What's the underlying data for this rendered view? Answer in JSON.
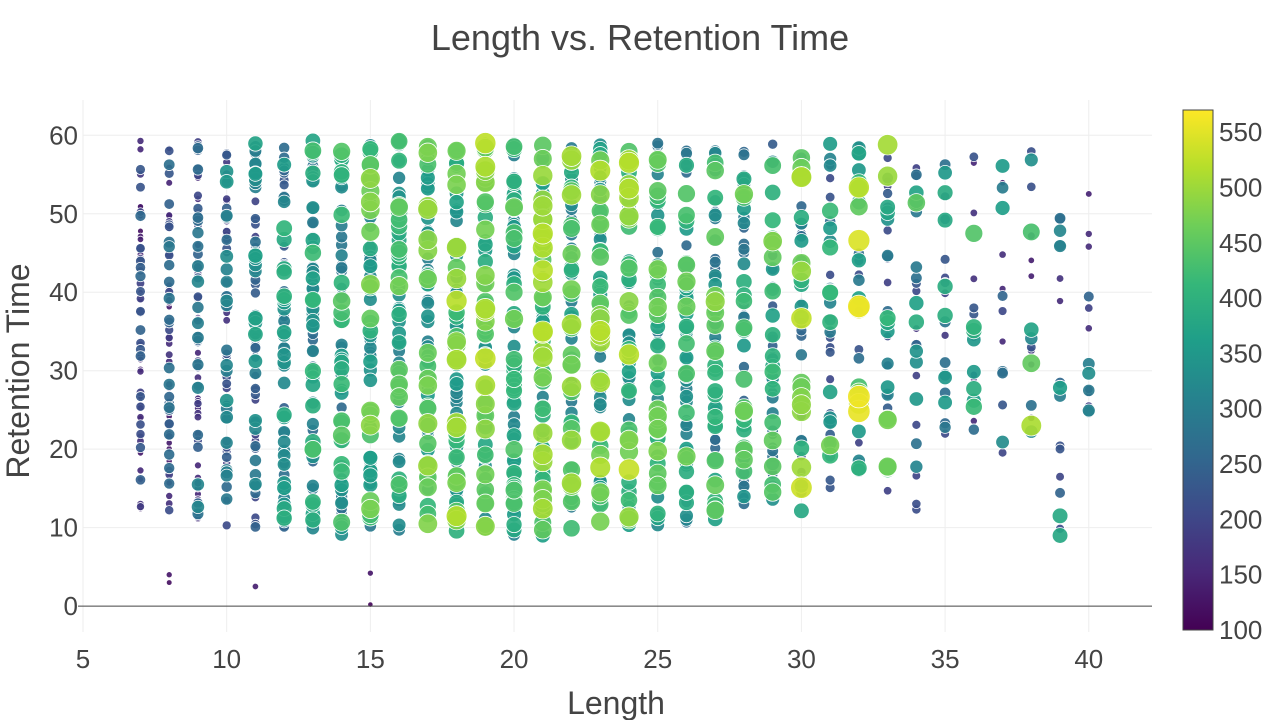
{
  "chart_data": {
    "type": "scatter",
    "title": "Length vs. Retention Time",
    "xlabel": "Length",
    "ylabel": "Retention Time",
    "xlim": [
      5,
      42.2
    ],
    "ylim": [
      -3.3,
      64.5
    ],
    "x_ticks": [
      5,
      10,
      15,
      20,
      25,
      30,
      35,
      40
    ],
    "y_ticks": [
      0,
      10,
      20,
      30,
      40,
      50,
      60
    ],
    "grid": true,
    "legend": "none",
    "colorscale": "Viridis",
    "marker_size_and_color_by": "peptide mass-like value (color bar)",
    "colorbar": {
      "range": [
        100,
        570
      ],
      "ticks": [
        100,
        150,
        200,
        250,
        300,
        350,
        400,
        450,
        500,
        550
      ]
    },
    "colors": {
      "viridis": [
        "#440154",
        "#482878",
        "#3e4989",
        "#31688e",
        "#26828e",
        "#1f9e89",
        "#35b779",
        "#6ece58",
        "#b5de2b",
        "#fde725"
      ]
    },
    "columns": [
      {
        "x": 7,
        "ymin": 12,
        "ymax": 59.5,
        "cmin": 110,
        "cmax": 260,
        "n": 70
      },
      {
        "x": 8,
        "ymin": 11,
        "ymax": 59.5,
        "cmin": 130,
        "cmax": 290,
        "n": 70
      },
      {
        "x": 9,
        "ymin": 10.5,
        "ymax": 59.5,
        "cmin": 150,
        "cmax": 320,
        "n": 72
      },
      {
        "x": 10,
        "ymin": 10,
        "ymax": 59.5,
        "cmin": 170,
        "cmax": 350,
        "n": 74
      },
      {
        "x": 11,
        "ymin": 10,
        "ymax": 59.5,
        "cmin": 190,
        "cmax": 380,
        "n": 74
      },
      {
        "x": 12,
        "ymin": 9.5,
        "ymax": 59.5,
        "cmin": 220,
        "cmax": 420,
        "n": 76
      },
      {
        "x": 13,
        "ymin": 9.5,
        "ymax": 59.5,
        "cmin": 240,
        "cmax": 440,
        "n": 76
      },
      {
        "x": 14,
        "ymin": 9,
        "ymax": 59.5,
        "cmin": 260,
        "cmax": 460,
        "n": 76
      },
      {
        "x": 15,
        "ymin": 9.5,
        "ymax": 59.5,
        "cmin": 280,
        "cmax": 490,
        "n": 76
      },
      {
        "x": 16,
        "ymin": 9.5,
        "ymax": 59.5,
        "cmin": 300,
        "cmax": 480,
        "n": 76
      },
      {
        "x": 17,
        "ymin": 9.5,
        "ymax": 59.5,
        "cmin": 300,
        "cmax": 500,
        "n": 76
      },
      {
        "x": 18,
        "ymin": 9,
        "ymax": 59.5,
        "cmin": 310,
        "cmax": 520,
        "n": 74
      },
      {
        "x": 19,
        "ymin": 9,
        "ymax": 59.5,
        "cmin": 310,
        "cmax": 530,
        "n": 74
      },
      {
        "x": 20,
        "ymin": 9,
        "ymax": 59.5,
        "cmin": 300,
        "cmax": 470,
        "n": 74
      },
      {
        "x": 21,
        "ymin": 9,
        "ymax": 59.5,
        "cmin": 300,
        "cmax": 520,
        "n": 74
      },
      {
        "x": 22,
        "ymin": 9.5,
        "ymax": 59,
        "cmin": 290,
        "cmax": 510,
        "n": 72
      },
      {
        "x": 23,
        "ymin": 9.5,
        "ymax": 59,
        "cmin": 290,
        "cmax": 520,
        "n": 72
      },
      {
        "x": 24,
        "ymin": 9.5,
        "ymax": 59,
        "cmin": 280,
        "cmax": 530,
        "n": 70
      },
      {
        "x": 25,
        "ymin": 10,
        "ymax": 59,
        "cmin": 270,
        "cmax": 480,
        "n": 70
      },
      {
        "x": 26,
        "ymin": 10,
        "ymax": 59,
        "cmin": 260,
        "cmax": 470,
        "n": 66
      },
      {
        "x": 27,
        "ymin": 11,
        "ymax": 59,
        "cmin": 250,
        "cmax": 480,
        "n": 62
      },
      {
        "x": 28,
        "ymin": 11,
        "ymax": 59,
        "cmin": 240,
        "cmax": 470,
        "n": 58
      },
      {
        "x": 29,
        "ymin": 12,
        "ymax": 59,
        "cmin": 220,
        "cmax": 470,
        "n": 52
      },
      {
        "x": 30,
        "ymin": 12,
        "ymax": 59,
        "cmin": 210,
        "cmax": 530,
        "n": 48
      },
      {
        "x": 31,
        "ymin": 15,
        "ymax": 59,
        "cmin": 200,
        "cmax": 420,
        "n": 40
      },
      {
        "x": 32,
        "ymin": 15,
        "ymax": 59,
        "cmin": 190,
        "cmax": 560,
        "n": 36
      },
      {
        "x": 33,
        "ymin": 12,
        "ymax": 59,
        "cmin": 190,
        "cmax": 500,
        "n": 34
      },
      {
        "x": 34,
        "ymin": 9,
        "ymax": 56,
        "cmin": 170,
        "cmax": 450,
        "n": 26
      },
      {
        "x": 35,
        "ymin": 21,
        "ymax": 59,
        "cmin": 170,
        "cmax": 400,
        "n": 22
      },
      {
        "x": 36,
        "ymin": 22,
        "ymax": 59,
        "cmin": 150,
        "cmax": 430,
        "n": 18
      },
      {
        "x": 37,
        "ymin": 18,
        "ymax": 57,
        "cmin": 140,
        "cmax": 380,
        "n": 14
      },
      {
        "x": 38,
        "ymin": 19,
        "ymax": 60,
        "cmin": 140,
        "cmax": 520,
        "n": 16
      },
      {
        "x": 39,
        "ymin": 9,
        "ymax": 59,
        "cmin": 150,
        "cmax": 450,
        "n": 16
      },
      {
        "x": 40,
        "ymin": 23,
        "ymax": 56,
        "cmin": 140,
        "cmax": 350,
        "n": 14
      }
    ],
    "highlight_points": [
      {
        "x": 32,
        "y": 26.7,
        "c": 560
      },
      {
        "x": 30,
        "y": 15.1,
        "c": 535
      },
      {
        "x": 24,
        "y": 17.4,
        "c": 530
      },
      {
        "x": 19,
        "y": 59.0,
        "c": 525
      },
      {
        "x": 18,
        "y": 38.9,
        "c": 520
      },
      {
        "x": 33,
        "y": 58.8,
        "c": 505
      },
      {
        "x": 38,
        "y": 23.0,
        "c": 510
      },
      {
        "x": 23,
        "y": 55.5,
        "c": 515
      },
      {
        "x": 22,
        "y": 35.9,
        "c": 505
      },
      {
        "x": 21,
        "y": 51.0,
        "c": 500
      },
      {
        "x": 15,
        "y": 54.5,
        "c": 490
      },
      {
        "x": 27,
        "y": 38.8,
        "c": 490
      },
      {
        "x": 17,
        "y": 10.5,
        "c": 480
      },
      {
        "x": 29,
        "y": 46.5,
        "c": 480
      },
      {
        "x": 31,
        "y": 20.5,
        "c": 470
      },
      {
        "x": 34,
        "y": 51.4,
        "c": 450
      },
      {
        "x": 36,
        "y": 47.5,
        "c": 440
      },
      {
        "x": 39,
        "y": 9.0,
        "c": 380
      },
      {
        "x": 8,
        "y": 4.0,
        "c": 130
      },
      {
        "x": 8,
        "y": 3.0,
        "c": 120
      },
      {
        "x": 11,
        "y": 2.5,
        "c": 140
      },
      {
        "x": 15,
        "y": 4.2,
        "c": 130
      },
      {
        "x": 15,
        "y": 0.2,
        "c": 110
      }
    ]
  }
}
